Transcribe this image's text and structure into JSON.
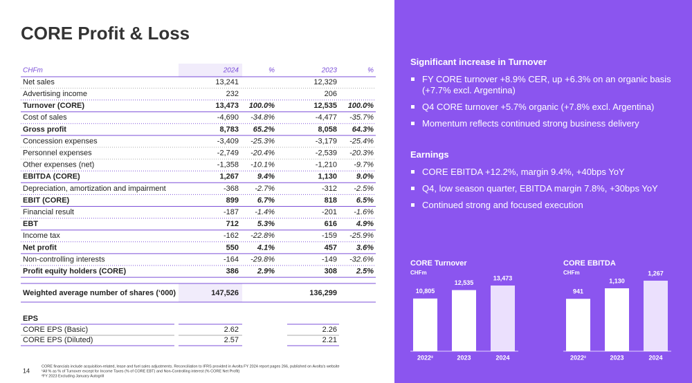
{
  "title": "CORE Profit & Loss",
  "table": {
    "header": [
      "CHFm",
      "2024",
      "%",
      "2023",
      "%"
    ],
    "rows": [
      {
        "cells": [
          "Net sales",
          "13,241",
          null,
          "12,329",
          null
        ]
      },
      {
        "cells": [
          "Advertising income",
          "232",
          null,
          "206",
          null
        ]
      },
      {
        "cells": [
          "Turnover (CORE)",
          "13,473",
          "100.0%",
          "12,535",
          "100.0%"
        ],
        "bold": true
      },
      {
        "cells": [
          "Cost of sales",
          "-4,690",
          "-34.8%",
          "-4,477",
          "-35.7%"
        ]
      },
      {
        "cells": [
          "Gross profit",
          "8,783",
          "65.2%",
          "8,058",
          "64.3%"
        ],
        "bold": true
      },
      {
        "cells": [
          "Concession expenses",
          "-3,409",
          "-25.3%",
          "-3,179",
          "-25.4%"
        ]
      },
      {
        "cells": [
          "Personnel expenses",
          "-2,749",
          "-20.4%",
          "-2,539",
          "-20.3%"
        ]
      },
      {
        "cells": [
          "Other expenses (net)",
          "-1,358",
          "-10.1%",
          "-1,210",
          "-9.7%"
        ]
      },
      {
        "cells": [
          "EBITDA (CORE)",
          "1,267",
          "9.4%",
          "1,130",
          "9.0%"
        ],
        "bold": true
      },
      {
        "cells": [
          "Depreciation, amortization and impairment",
          "-368",
          "-2.7%",
          "-312",
          "-2.5%"
        ]
      },
      {
        "cells": [
          "EBIT (CORE)",
          "899",
          "6.7%",
          "818",
          "6.5%"
        ],
        "bold": true
      },
      {
        "cells": [
          "Financial result",
          "-187",
          "-1.4%",
          "-201",
          "-1.6%"
        ]
      },
      {
        "cells": [
          "EBT",
          "712",
          "5.3%",
          "616",
          "4.9%"
        ],
        "bold": true
      },
      {
        "cells": [
          "Income tax",
          "-162",
          "-22.8%",
          "-159",
          "-25.9%"
        ]
      },
      {
        "cells": [
          "Net profit",
          "550",
          "4.1%",
          "457",
          "3.6%"
        ],
        "bold": true
      },
      {
        "cells": [
          "Non-controlling interests",
          "-164",
          "-29.8%",
          "-149",
          "-32.6%"
        ]
      },
      {
        "cells": [
          "Profit equity holders (CORE)",
          "386",
          "2.9%",
          "308",
          "2.5%"
        ],
        "bold": true
      }
    ]
  },
  "shares": [
    "Weighted average number of shares (‘000)",
    "147,526",
    "136,299"
  ],
  "eps": {
    "heading": "EPS",
    "rows": [
      [
        "CORE EPS (Basic)",
        "2.62",
        "2.26"
      ],
      [
        "CORE EPS (Diluted)",
        "2.57",
        "2.21"
      ]
    ]
  },
  "footnote": {
    "page": "14",
    "lines": [
      "CORE financials include acquisition-related, lease and fuel sales adjustments. Reconciliation to IFRS provided in Avolta FY 2024 report pages 266, published on Avolta's website",
      "¹All % as % of Turnover except for Income Taxes (% of CORE EBT) and Non-Controlling interest (% CORE Net Profit)",
      "²FY 2023  Excluding January Autogrill"
    ]
  },
  "panel": {
    "sections": [
      {
        "heading": "Significant increase in Turnover",
        "bullets": [
          "FY CORE turnover +8.9% CER, up +6.3% on an organic basis (+7.7% excl. Argentina)",
          "Q4 CORE turnover +5.7% organic (+7.8% excl. Argentina)",
          "Momentum reflects continued strong business delivery"
        ]
      },
      {
        "heading": "Earnings",
        "bullets": [
          "CORE EBITDA +12.2%, margin 9.4%, +40bps YoY",
          "Q4, low season quarter, EBITDA margin 7.8%, +30bps YoY",
          "Continued strong and focused execution"
        ]
      }
    ]
  },
  "chart_data": [
    {
      "type": "bar",
      "title": "CORE Turnover",
      "subtitle": "CHFm",
      "categories": [
        "2022²",
        "2023",
        "2024"
      ],
      "values": [
        10805,
        12535,
        13473
      ],
      "value_labels": [
        "10,805",
        "12,535",
        "13,473"
      ],
      "colors": [
        "#ffffff",
        "#ffffff",
        "#ebe0fd"
      ]
    },
    {
      "type": "bar",
      "title": "CORE EBITDA",
      "subtitle": "CHFm",
      "categories": [
        "2022²",
        "2023",
        "2024"
      ],
      "values": [
        941,
        1130,
        1267
      ],
      "value_labels": [
        "941",
        "1,130",
        "1,267"
      ],
      "colors": [
        "#ffffff",
        "#ffffff",
        "#ebe0fd"
      ]
    }
  ]
}
